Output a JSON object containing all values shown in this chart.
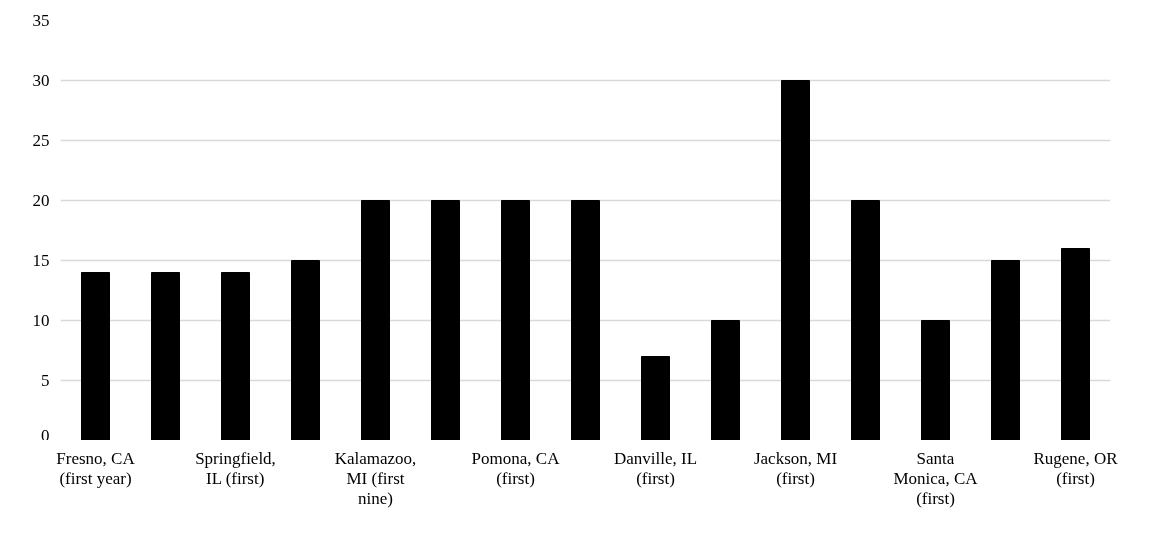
{
  "chart_data": {
    "type": "bar",
    "categories": [
      "Fresno, CA (first year)",
      null,
      "Springfield, IL (first)",
      null,
      "Kalamazoo, MI (first nine)",
      null,
      "Pomona, CA (first)",
      null,
      "Danville, IL (first)",
      null,
      "Jackson, MI (first)",
      null,
      "Santa Monica, CA (first)",
      null,
      "Rugene, OR (first)"
    ],
    "values": [
      14,
      14,
      14,
      15,
      20,
      20,
      20,
      20,
      7,
      10,
      30,
      20,
      10,
      15,
      16
    ],
    "color": "#000000",
    "ylim": [
      0,
      35
    ],
    "yticks": [
      0,
      5,
      10,
      15,
      20,
      25,
      30,
      35
    ],
    "grid": "y"
  }
}
